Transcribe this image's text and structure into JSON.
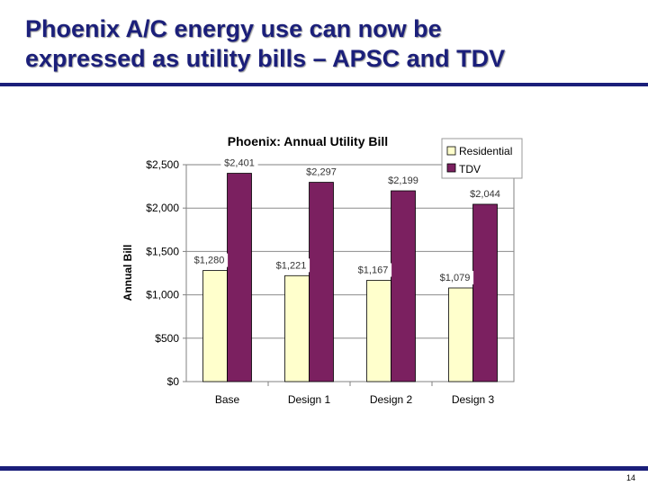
{
  "slide": {
    "title_line1": "Phoenix A/C energy use can now be",
    "title_line2": "expressed as utility bills – APSC and TDV",
    "page_number": "14"
  },
  "colors": {
    "title": "#1b1f7a",
    "rule": "#1b1f7a",
    "residential": "#ffffcc",
    "tdv": "#7b2060"
  },
  "chart_data": {
    "type": "bar",
    "title": "Phoenix: Annual Utility Bill",
    "xlabel": "",
    "ylabel": "Annual Bill",
    "categories": [
      "Base",
      "Design 1",
      "Design 2",
      "Design 3"
    ],
    "series": [
      {
        "name": "Residential",
        "values": [
          1280,
          1221,
          1167,
          1079
        ],
        "labels": [
          "$1,280",
          "$1,221",
          "$1,167",
          "$1,079"
        ]
      },
      {
        "name": "TDV",
        "values": [
          2401,
          2297,
          2199,
          2044
        ],
        "labels": [
          "$2,401",
          "$2,297",
          "$2,199",
          "$2,044"
        ]
      }
    ],
    "ylim": [
      0,
      2500
    ],
    "yticks": [
      0,
      500,
      1000,
      1500,
      2000,
      2500
    ],
    "ytick_labels": [
      "$0",
      "$500",
      "$1,000",
      "$1,500",
      "$2,000",
      "$2,500"
    ],
    "grid": "horizontal",
    "legend": "top-right"
  }
}
